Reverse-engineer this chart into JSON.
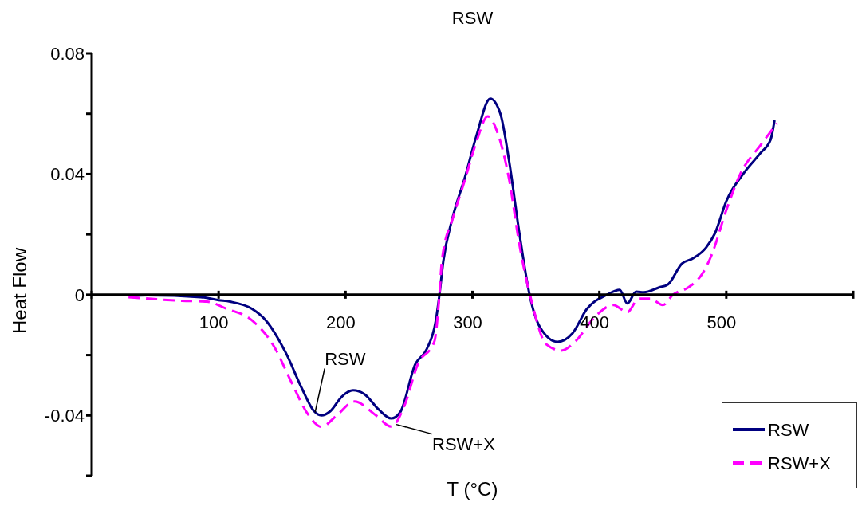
{
  "chart_data": {
    "type": "line",
    "title": "RSW",
    "xlabel": "T (°C)",
    "ylabel": "Heat Flow",
    "xlim": [
      0,
      600
    ],
    "xticks": [
      {
        "value": 0,
        "label": null
      },
      100,
      200,
      300,
      400,
      500,
      {
        "value": 600,
        "label": null
      }
    ],
    "ylim": [
      -0.06,
      0.08
    ],
    "yticks": [
      {
        "value": -0.06,
        "label": null
      },
      -0.04,
      {
        "value": -0.02,
        "label": null
      },
      0,
      {
        "value": 0.02,
        "label": null
      },
      0.04,
      {
        "value": 0.06,
        "label": null
      },
      0.08
    ],
    "legend": "bottom right",
    "marker": "none",
    "series": [
      {
        "name": "RSW",
        "color": "#000080",
        "line_style": "solid",
        "x": [
          30,
          44,
          86,
          100,
          109,
          126,
          137,
          153,
          166,
          175,
          181,
          188,
          197,
          206,
          215,
          226,
          236,
          243,
          255,
          264,
          271,
          274,
          277,
          284,
          294,
          303,
          314,
          322,
          329,
          337,
          345,
          353,
          367,
          379,
          390,
          406,
          416,
          422,
          429,
          435,
          447,
          454,
          465,
          474,
          484,
          491,
          500,
          515,
          527,
          535,
          538
        ],
        "values": [
          -0.0005,
          -0.0002,
          -0.0008,
          -0.0018,
          -0.0023,
          -0.0046,
          -0.0084,
          -0.0193,
          -0.0314,
          -0.0385,
          -0.04,
          -0.0386,
          -0.0338,
          -0.0317,
          -0.033,
          -0.038,
          -0.041,
          -0.039,
          -0.023,
          -0.018,
          -0.0089,
          0,
          0.011,
          0.025,
          0.0388,
          0.0525,
          0.065,
          0.06,
          0.044,
          0.0203,
          0,
          -0.0106,
          -0.0156,
          -0.0127,
          -0.0048,
          0,
          0.0016,
          -0.0029,
          0.001,
          0.0008,
          0.0024,
          0.0034,
          0.0103,
          0.0121,
          0.0156,
          0.0203,
          0.031,
          0.041,
          0.047,
          0.0515,
          0.0578
        ]
      },
      {
        "name": "RSW+X",
        "color": "#ff00ff",
        "line_style": "dashed",
        "x": [
          29,
          71,
          91,
          106,
          126,
          144,
          157,
          171,
          181,
          193,
          207,
          224,
          236,
          246,
          257,
          270,
          274,
          276,
          285,
          294,
          303,
          312,
          320,
          329,
          337,
          347,
          358,
          370,
          381,
          397,
          411,
          422,
          431,
          440,
          450,
          458,
          470,
          481,
          488,
          500,
          511,
          527,
          540
        ],
        "values": [
          -0.0008,
          -0.002,
          -0.0023,
          -0.0046,
          -0.0084,
          -0.0174,
          -0.0287,
          -0.04,
          -0.0438,
          -0.04,
          -0.0354,
          -0.04,
          -0.0437,
          -0.0372,
          -0.023,
          -0.0155,
          0,
          0.0116,
          0.026,
          0.038,
          0.0505,
          0.0591,
          0.0534,
          0.038,
          0.0166,
          -0.0029,
          -0.0164,
          -0.0185,
          -0.0155,
          -0.0071,
          -0.0034,
          -0.0058,
          -0.0013,
          -0.0013,
          -0.0034,
          0,
          0.0024,
          0.0069,
          0.0127,
          0.028,
          0.04,
          0.0496,
          0.0568
        ]
      }
    ],
    "annotations": [
      {
        "text": "RSW",
        "x": 176,
        "y": -0.039
      },
      {
        "text": "RSW+X",
        "x": 240,
        "y": -0.043
      }
    ]
  }
}
